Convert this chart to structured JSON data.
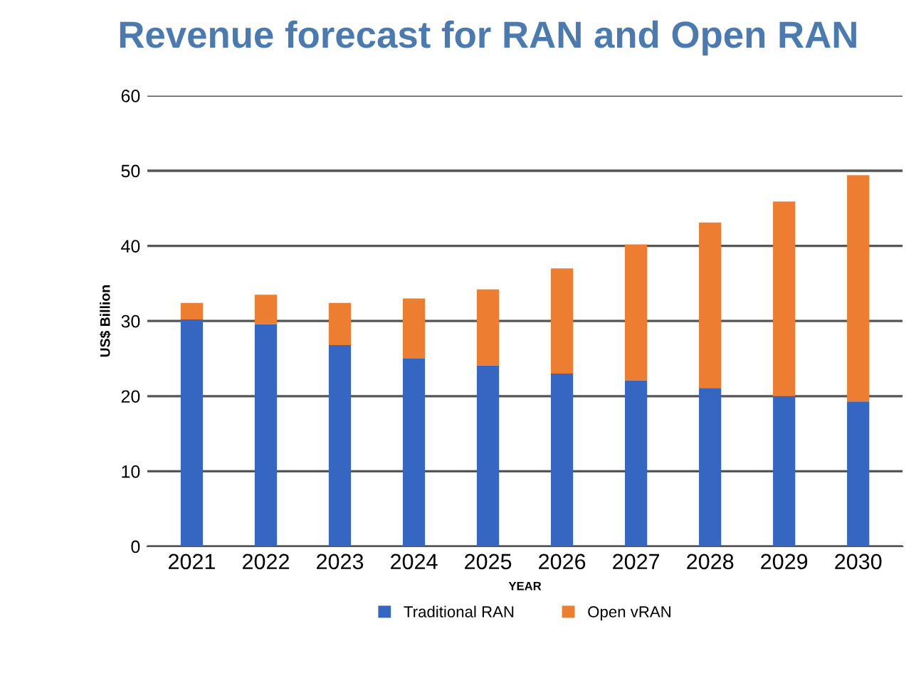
{
  "chart_data": {
    "type": "bar",
    "title": "Revenue forecast for RAN and Open RAN",
    "xlabel": "YEAR",
    "ylabel": "US$ Billion",
    "categories": [
      "2021",
      "2022",
      "2023",
      "2024",
      "2025",
      "2026",
      "2027",
      "2028",
      "2029",
      "2030"
    ],
    "stacked": true,
    "series": [
      {
        "name": "Traditional RAN",
        "color": "#3466c2",
        "values": [
          30.2,
          29.6,
          26.8,
          25.0,
          24.1,
          23.0,
          22.1,
          21.1,
          20.0,
          19.3
        ]
      },
      {
        "name": "Open vRAN",
        "color": "#ed7d31",
        "values": [
          2.2,
          3.9,
          5.6,
          8.0,
          10.1,
          14.0,
          18.1,
          22.0,
          25.9,
          30.1
        ]
      }
    ],
    "ylim": [
      0,
      60
    ],
    "yticks": [
      0,
      10,
      20,
      30,
      40,
      50,
      60
    ],
    "grid": "y",
    "legend": "bottom"
  }
}
